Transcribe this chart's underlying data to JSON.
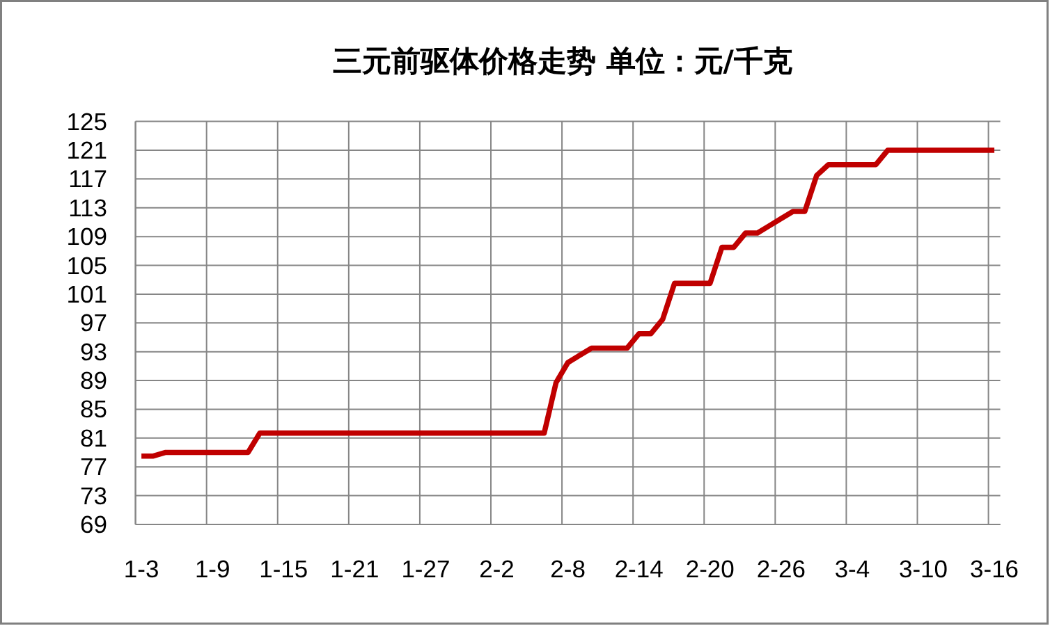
{
  "chart_data": {
    "type": "line",
    "title": "三元前驱体价格走势 单位：元/千克",
    "categories": [
      "1-3",
      null,
      null,
      null,
      null,
      null,
      "1-9",
      null,
      null,
      null,
      null,
      null,
      "1-15",
      null,
      null,
      null,
      null,
      null,
      "1-21",
      null,
      null,
      null,
      null,
      null,
      "1-27",
      null,
      null,
      null,
      null,
      null,
      "2-2",
      null,
      null,
      null,
      null,
      null,
      "2-8",
      null,
      null,
      null,
      null,
      null,
      "2-14",
      null,
      null,
      null,
      null,
      null,
      "2-20",
      null,
      null,
      null,
      null,
      null,
      "2-26",
      null,
      null,
      null,
      null,
      null,
      "3-4",
      null,
      null,
      null,
      null,
      null,
      "3-10",
      null,
      null,
      null,
      null,
      null,
      "3-16"
    ],
    "series": [
      {
        "color": "#c00000",
        "values": [
          78.5,
          78.5,
          79,
          79,
          79,
          79,
          79,
          79,
          79,
          79,
          81.7,
          81.7,
          81.7,
          81.7,
          81.7,
          81.7,
          81.7,
          81.7,
          81.7,
          81.7,
          81.7,
          81.7,
          81.7,
          81.7,
          81.7,
          81.7,
          81.7,
          81.7,
          81.7,
          81.7,
          81.7,
          81.7,
          81.7,
          81.7,
          81.7,
          88.7,
          91.5,
          92.5,
          93.5,
          93.5,
          93.5,
          93.5,
          95.5,
          95.5,
          97.5,
          102.5,
          102.5,
          102.5,
          102.5,
          107.5,
          107.5,
          109.5,
          109.5,
          110.5,
          111.5,
          112.5,
          112.5,
          117.5,
          119,
          119,
          119,
          119,
          119,
          121,
          121,
          121,
          121,
          121,
          121,
          121,
          121,
          121,
          121
        ]
      }
    ],
    "ylim": [
      69,
      125
    ],
    "yticks": [
      69,
      73,
      77,
      81,
      85,
      89,
      93,
      97,
      101,
      105,
      109,
      113,
      117,
      121,
      125
    ],
    "grid": true
  }
}
